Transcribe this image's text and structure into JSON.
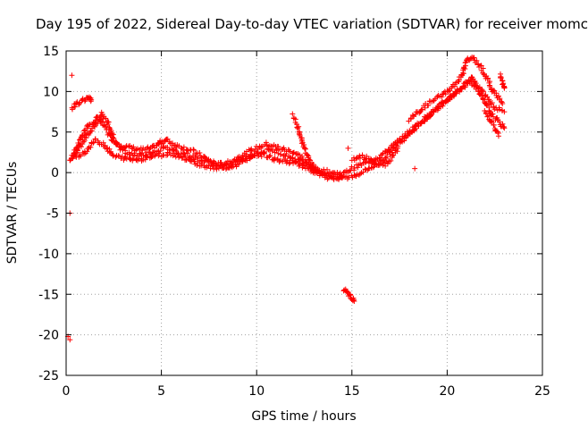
{
  "chart_data": {
    "type": "scatter",
    "title": "Day 195 of 2022, Sidereal Day-to-day VTEC variation (SDTVAR) for receiver momc",
    "xlabel": "GPS time / hours",
    "ylabel": "SDTVAR / TECUs",
    "xlim": [
      0,
      25
    ],
    "ylim": [
      -25,
      15
    ],
    "xticks": [
      0,
      5,
      10,
      15,
      20,
      25
    ],
    "yticks": [
      -25,
      -20,
      -15,
      -10,
      -5,
      0,
      5,
      10,
      15
    ],
    "grid": true,
    "marker": "+",
    "series": [
      {
        "name": "SDTVAR",
        "color": "#ff0000",
        "tracks": [
          [
            [
              0.2,
              1.5
            ],
            [
              0.5,
              2.5
            ],
            [
              0.8,
              3.5
            ],
            [
              1.1,
              4.5
            ],
            [
              1.4,
              5.5
            ],
            [
              1.6,
              6.2
            ],
            [
              1.8,
              6.5
            ],
            [
              2.0,
              5.8
            ],
            [
              2.3,
              4.5
            ],
            [
              2.6,
              3.8
            ],
            [
              3.0,
              3.3
            ],
            [
              3.5,
              3.0
            ],
            [
              4.0,
              2.8
            ],
            [
              4.5,
              3.0
            ],
            [
              4.8,
              3.5
            ],
            [
              5.0,
              3.8
            ],
            [
              5.3,
              4.0
            ],
            [
              5.6,
              3.5
            ],
            [
              6.0,
              3.2
            ],
            [
              6.5,
              2.8
            ],
            [
              7.0,
              2.2
            ],
            [
              7.5,
              1.5
            ],
            [
              8.0,
              1.0
            ],
            [
              8.5,
              1.2
            ],
            [
              9.0,
              1.8
            ],
            [
              9.5,
              2.5
            ],
            [
              10.0,
              3.0
            ],
            [
              10.5,
              3.5
            ],
            [
              11.0,
              3.2
            ],
            [
              11.5,
              2.8
            ],
            [
              12.0,
              2.5
            ],
            [
              12.3,
              2.0
            ],
            [
              12.6,
              1.2
            ],
            [
              13.0,
              0.5
            ],
            [
              13.5,
              0.2
            ],
            [
              14.0,
              0.0
            ],
            [
              14.5,
              -0.2
            ],
            [
              15.0,
              0.5
            ],
            [
              15.5,
              1.0
            ],
            [
              16.0,
              1.5
            ],
            [
              16.5,
              2.0
            ],
            [
              17.0,
              3.0
            ],
            [
              17.5,
              4.0
            ],
            [
              18.0,
              5.0
            ],
            [
              18.5,
              6.0
            ],
            [
              19.0,
              7.0
            ],
            [
              19.5,
              8.0
            ],
            [
              20.0,
              9.0
            ],
            [
              20.5,
              10.0
            ],
            [
              21.0,
              11.0
            ],
            [
              21.3,
              11.8
            ],
            [
              21.5,
              11.0
            ],
            [
              22.0,
              9.5
            ],
            [
              22.5,
              8.0
            ],
            [
              23.0,
              7.5
            ]
          ],
          [
            [
              0.3,
              1.8
            ],
            [
              0.6,
              3.2
            ],
            [
              0.9,
              4.8
            ],
            [
              1.2,
              5.8
            ],
            [
              1.5,
              6.5
            ],
            [
              1.9,
              7.2
            ],
            [
              2.2,
              6.0
            ],
            [
              2.5,
              4.2
            ],
            [
              2.8,
              3.0
            ],
            [
              3.2,
              2.4
            ],
            [
              3.7,
              2.2
            ],
            [
              4.2,
              2.3
            ],
            [
              4.6,
              2.6
            ],
            [
              5.1,
              3.0
            ],
            [
              5.5,
              2.9
            ],
            [
              6.0,
              2.5
            ],
            [
              6.5,
              2.0
            ],
            [
              7.0,
              1.6
            ],
            [
              7.6,
              1.2
            ],
            [
              8.1,
              0.8
            ],
            [
              8.7,
              0.9
            ],
            [
              9.2,
              1.4
            ],
            [
              9.8,
              2.0
            ],
            [
              10.3,
              2.6
            ],
            [
              10.8,
              2.8
            ],
            [
              11.3,
              2.4
            ],
            [
              11.8,
              1.9
            ],
            [
              12.2,
              1.5
            ],
            [
              12.7,
              0.9
            ],
            [
              13.2,
              0.2
            ],
            [
              13.7,
              -0.3
            ],
            [
              14.2,
              -0.5
            ],
            [
              14.8,
              -0.6
            ],
            [
              15.3,
              -0.2
            ],
            [
              15.8,
              0.4
            ],
            [
              16.3,
              1.0
            ],
            [
              16.8,
              2.0
            ],
            [
              17.3,
              3.2
            ],
            [
              17.8,
              4.4
            ],
            [
              18.3,
              5.5
            ],
            [
              18.8,
              6.5
            ],
            [
              19.3,
              7.5
            ],
            [
              19.8,
              8.5
            ],
            [
              20.3,
              9.5
            ],
            [
              20.8,
              10.5
            ],
            [
              21.2,
              11.4
            ],
            [
              21.6,
              10.2
            ],
            [
              22.0,
              8.5
            ],
            [
              22.4,
              7.0
            ],
            [
              22.8,
              6.0
            ],
            [
              23.0,
              5.5
            ]
          ],
          [
            [
              0.3,
              8.0
            ],
            [
              0.6,
              8.5
            ],
            [
              0.9,
              9.0
            ],
            [
              1.2,
              9.2
            ],
            [
              1.3,
              8.8
            ]
          ],
          [
            [
              0.5,
              2.0
            ],
            [
              1.0,
              2.5
            ],
            [
              1.5,
              4.0
            ],
            [
              2.0,
              3.5
            ],
            [
              2.5,
              2.0
            ],
            [
              3.0,
              1.8
            ],
            [
              3.5,
              1.6
            ],
            [
              4.0,
              1.7
            ],
            [
              4.5,
              2.0
            ],
            [
              5.0,
              2.2
            ],
            [
              5.5,
              2.4
            ],
            [
              6.0,
              2.0
            ],
            [
              6.5,
              1.5
            ],
            [
              7.0,
              1.0
            ],
            [
              7.5,
              0.7
            ],
            [
              8.0,
              0.5
            ],
            [
              8.5,
              0.6
            ],
            [
              9.0,
              1.0
            ]
          ],
          [
            [
              9.0,
              1.5
            ],
            [
              9.5,
              1.8
            ],
            [
              10.0,
              2.4
            ],
            [
              10.5,
              2.1
            ],
            [
              11.0,
              1.6
            ],
            [
              11.5,
              1.4
            ],
            [
              12.0,
              1.2
            ],
            [
              12.5,
              0.8
            ],
            [
              13.0,
              0.0
            ],
            [
              13.5,
              -0.4
            ],
            [
              14.0,
              -0.8
            ],
            [
              14.5,
              -0.6
            ]
          ],
          [
            [
              11.9,
              7.0
            ],
            [
              12.1,
              6.0
            ],
            [
              12.3,
              4.5
            ],
            [
              12.5,
              3.0
            ],
            [
              12.7,
              2.0
            ],
            [
              12.9,
              1.0
            ],
            [
              13.1,
              0.3
            ]
          ],
          [
            [
              15.0,
              1.5
            ],
            [
              15.4,
              2.0
            ],
            [
              15.8,
              1.8
            ],
            [
              16.2,
              1.2
            ],
            [
              16.6,
              0.8
            ],
            [
              17.0,
              1.5
            ],
            [
              17.4,
              3.0
            ]
          ],
          [
            [
              18.0,
              6.5
            ],
            [
              18.5,
              7.5
            ],
            [
              19.0,
              8.5
            ],
            [
              19.5,
              9.2
            ],
            [
              20.0,
              10.0
            ],
            [
              20.4,
              10.8
            ],
            [
              20.8,
              12.0
            ],
            [
              21.0,
              13.5
            ],
            [
              21.2,
              14.2
            ],
            [
              21.5,
              13.8
            ],
            [
              21.8,
              13.0
            ],
            [
              22.0,
              12.0
            ],
            [
              22.3,
              10.5
            ],
            [
              22.6,
              9.5
            ],
            [
              22.9,
              8.5
            ]
          ],
          [
            [
              22.0,
              7.5
            ],
            [
              22.3,
              6.5
            ],
            [
              22.5,
              5.5
            ],
            [
              22.7,
              4.5
            ]
          ],
          [
            [
              22.8,
              12.0
            ],
            [
              22.9,
              11.0
            ],
            [
              23.0,
              10.5
            ]
          ],
          [
            [
              14.6,
              -14.5
            ],
            [
              14.8,
              -14.9
            ],
            [
              15.0,
              -15.4
            ],
            [
              15.1,
              -15.7
            ]
          ],
          [
            [
              0.3,
              12.0
            ]
          ],
          [
            [
              0.2,
              -5.0
            ]
          ],
          [
            [
              0.1,
              -20.2
            ]
          ],
          [
            [
              0.2,
              -20.6
            ]
          ],
          [
            [
              18.3,
              0.5
            ]
          ],
          [
            [
              14.8,
              3.0
            ]
          ]
        ]
      }
    ]
  }
}
